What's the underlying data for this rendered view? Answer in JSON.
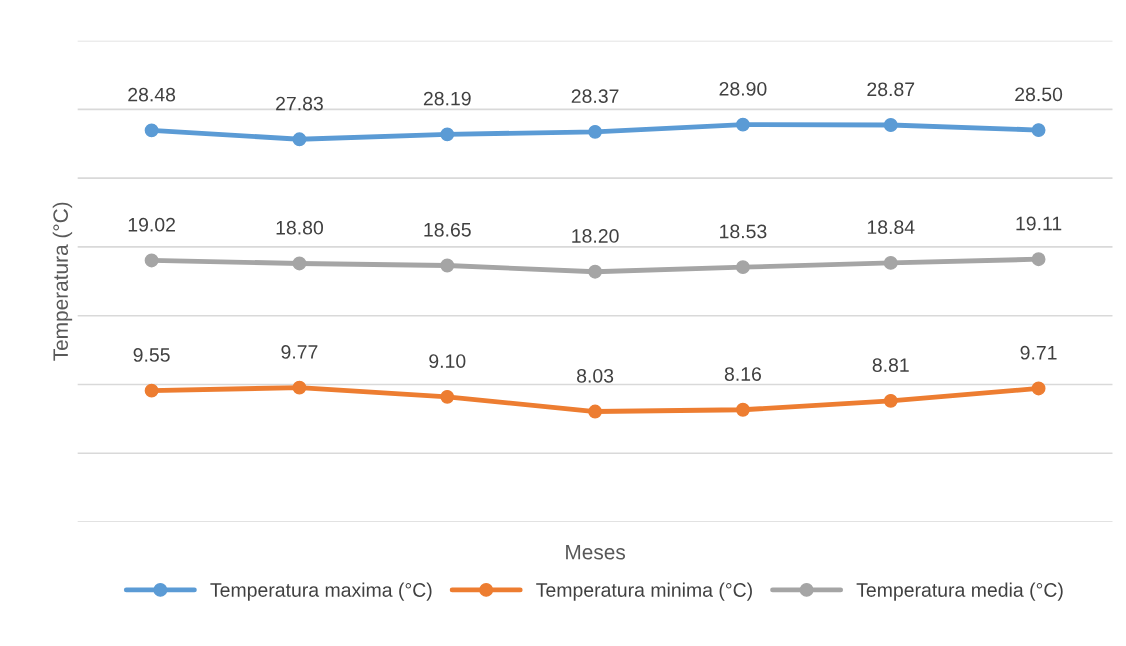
{
  "chart_data": {
    "type": "line",
    "xlabel": "Meses",
    "ylabel": "Temperatura (°C)",
    "categories": [
      null,
      null,
      null,
      null,
      null,
      null,
      null
    ],
    "series": [
      {
        "name": "Temperatura maxima (°C)",
        "color": "#5b9bd5",
        "values": [
          28.48,
          27.83,
          28.19,
          28.37,
          28.9,
          28.87,
          28.5
        ],
        "value_labels": [
          "28.48",
          "27.83",
          "28.19",
          "28.37",
          "28.90",
          "28.87",
          "28.50"
        ]
      },
      {
        "name": "Temperatura minima (°C)",
        "color": "#ed7d31",
        "values": [
          9.55,
          9.77,
          9.1,
          8.03,
          8.16,
          8.81,
          9.71
        ],
        "value_labels": [
          "9.55",
          "9.77",
          "9.10",
          "8.03",
          "8.16",
          "8.81",
          "9.71"
        ]
      },
      {
        "name": "Temperatura media (°C)",
        "color": "#a5a5a5",
        "values": [
          19.02,
          18.8,
          18.65,
          18.2,
          18.53,
          18.84,
          19.11
        ],
        "value_labels": [
          "19.02",
          "18.80",
          "18.65",
          "18.20",
          "18.53",
          "18.84",
          "19.11"
        ]
      }
    ],
    "ylim": [
      0,
      35
    ],
    "yticks": [
      {
        "value": 0,
        "label": null
      },
      {
        "value": 5,
        "label": null
      },
      {
        "value": 10,
        "label": null
      },
      {
        "value": 15,
        "label": null
      },
      {
        "value": 20,
        "label": null
      },
      {
        "value": 25,
        "label": null
      },
      {
        "value": 30,
        "label": null
      },
      {
        "value": 35,
        "label": null
      }
    ],
    "grid": "y",
    "legend": "bottom",
    "marker": "circle",
    "line_style": "solid",
    "tick_labels": false
  }
}
